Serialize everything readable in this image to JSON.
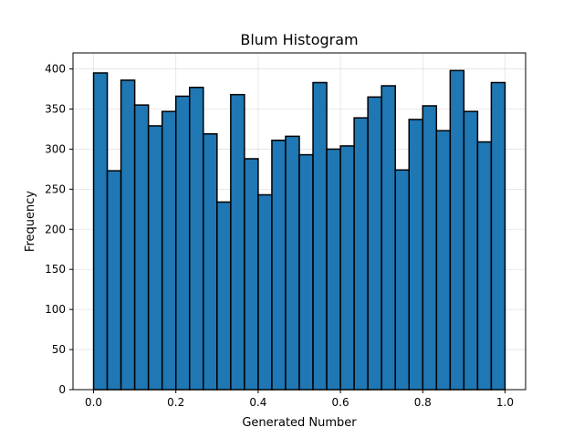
{
  "chart_data": {
    "type": "bar",
    "title": "Blum Histogram",
    "xlabel": "Generated Number",
    "ylabel": "Frequency",
    "xlim": [
      -0.05,
      1.05
    ],
    "ylim": [
      0,
      420
    ],
    "xticks": [
      0.0,
      0.2,
      0.4,
      0.6,
      0.8,
      1.0
    ],
    "xtick_labels": [
      "0.0",
      "0.2",
      "0.4",
      "0.6",
      "0.8",
      "1.0"
    ],
    "yticks": [
      0,
      50,
      100,
      150,
      200,
      250,
      300,
      350,
      400
    ],
    "ytick_labels": [
      "0",
      "50",
      "100",
      "150",
      "200",
      "250",
      "300",
      "350",
      "400"
    ],
    "grid": true,
    "bar_color": "#1f77b4",
    "edge_color": "#000000",
    "bin_range": [
      0.0,
      1.0
    ],
    "bins": 30,
    "values": [
      395,
      273,
      386,
      355,
      329,
      347,
      366,
      377,
      319,
      234,
      368,
      288,
      243,
      311,
      316,
      293,
      383,
      300,
      304,
      339,
      365,
      379,
      274,
      337,
      354,
      323,
      398,
      347,
      309,
      383
    ]
  }
}
